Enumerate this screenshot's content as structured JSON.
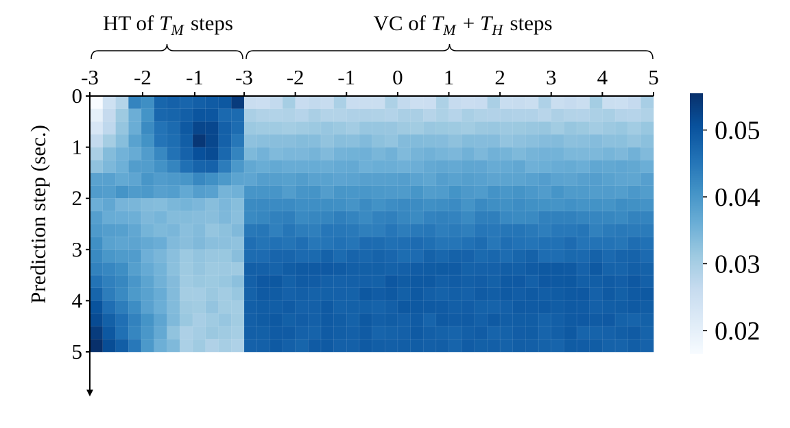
{
  "chart_data": {
    "type": "heatmap",
    "ylabel": "Prediction step (sec.)",
    "ht_header": {
      "prefix": "HT of ",
      "math": [
        "T",
        "M"
      ],
      "suffix": " steps"
    },
    "vc_header": {
      "prefix": "VC of ",
      "math": [
        "T",
        "M",
        "+",
        "T",
        "H"
      ],
      "suffix": " steps"
    },
    "ht_xticks": [
      "-3",
      "-2",
      "-1",
      "-3"
    ],
    "vc_xticks": [
      "-3",
      "-2",
      "-1",
      "0",
      "1",
      "2",
      "3",
      "4",
      "5"
    ],
    "yticks": [
      "0",
      "1",
      "2",
      "3",
      "4",
      "5"
    ],
    "colorbar": {
      "ticks": [
        "0.02",
        "0.03",
        "0.04",
        "0.05"
      ],
      "tick_values": [
        0.02,
        0.03,
        0.04,
        0.05
      ],
      "vmin": 0.0165,
      "vmax": 0.0555,
      "cmap": "Blues"
    },
    "grid": {
      "ht_columns": 12,
      "vc_columns": 32,
      "rows": 20,
      "note_values": "cell values estimated from colour"
    },
    "key_values": {
      "ht_top_left_min": 0.017,
      "ht_bottom_left_max": 0.055,
      "ht_bright_spot_col_11_row_0": 0.053,
      "vc_top_rows": 0.027,
      "vc_bottom_rows": 0.047
    }
  }
}
